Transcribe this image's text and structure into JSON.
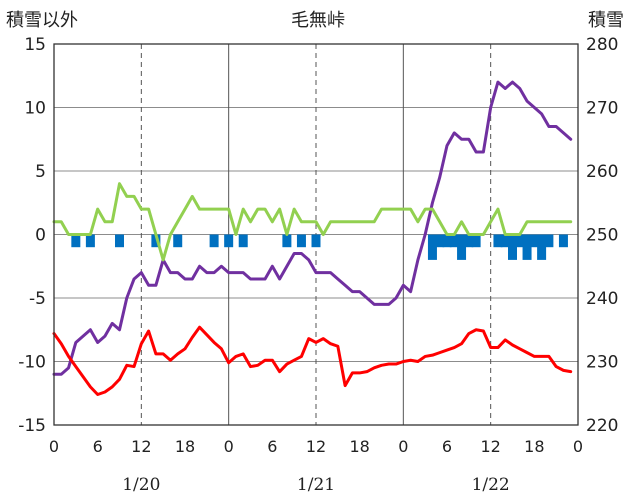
{
  "header": {
    "left_axis_title": "積雪以外",
    "title": "毛無峠",
    "right_axis_title": "積雪"
  },
  "chart_data": {
    "type": "line",
    "title": "毛無峠",
    "y_left": {
      "label": "積雪以外",
      "min": -15,
      "max": 15,
      "ticks": [
        -15,
        -10,
        -5,
        0,
        5,
        10,
        15
      ]
    },
    "y_right": {
      "label": "積雪",
      "min": 220,
      "max": 280,
      "ticks": [
        220,
        230,
        240,
        250,
        260,
        270,
        280
      ]
    },
    "x": {
      "unit": "hour",
      "min": 0,
      "max": 71,
      "tick_step": 3,
      "tick_labels": [
        "0",
        "",
        "6",
        "",
        "12",
        "",
        "18",
        "",
        "0",
        "",
        "6",
        "",
        "12",
        "",
        "18",
        "",
        "0",
        "",
        "6",
        "",
        "12",
        "",
        "18",
        "",
        "0"
      ],
      "major_positions": [
        0,
        24,
        48,
        72
      ],
      "minor_dashed_positions": [
        12,
        36,
        60
      ],
      "date_labels": [
        {
          "text": "1/20",
          "at": 12
        },
        {
          "text": "1/21",
          "at": 36
        },
        {
          "text": "1/22",
          "at": 60
        }
      ]
    },
    "grid": true,
    "series": [
      {
        "axis": "left",
        "color": "#7030a0",
        "values": [
          -11,
          -11,
          -10.5,
          -8.5,
          -8,
          -7.5,
          -8.5,
          -8,
          -7,
          -7.5,
          -5,
          -3.5,
          -3,
          -4,
          -4,
          -2,
          -3,
          -3,
          -3.5,
          -3.5,
          -2.5,
          -3,
          -3,
          -2.5,
          -3,
          -3,
          -3,
          -3.5,
          -3.5,
          -3.5,
          -2.5,
          -3.5,
          -2.5,
          -1.5,
          -1.5,
          -2,
          -3,
          -3,
          -3,
          -3.5,
          -4,
          -4.5,
          -4.5,
          -5,
          -5.5,
          -5.5,
          -5.5,
          -5,
          -4,
          -4.5,
          -2,
          0,
          2.5,
          4.5,
          7,
          8,
          7.5,
          7.5,
          6.5,
          6.5,
          10,
          12,
          11.5,
          12,
          11.5,
          10.5,
          10,
          9.5,
          8.5,
          8.5,
          8,
          7.5
        ]
      },
      {
        "axis": "left",
        "color": "#ff0000",
        "values": [
          -7.8,
          -8.6,
          -9.6,
          -10.4,
          -11.2,
          -12,
          -12.6,
          -12.4,
          -12,
          -11.4,
          -10.3,
          -10.4,
          -8.6,
          -7.6,
          -9.4,
          -9.4,
          -9.9,
          -9.4,
          -9,
          -8.1,
          -7.3,
          -7.9,
          -8.5,
          -9,
          -10.1,
          -9.6,
          -9.4,
          -10.4,
          -10.3,
          -9.9,
          -9.9,
          -10.8,
          -10.2,
          -9.9,
          -9.6,
          -8.2,
          -8.5,
          -8.2,
          -8.6,
          -8.8,
          -11.9,
          -10.9,
          -10.9,
          -10.8,
          -10.5,
          -10.3,
          -10.2,
          -10.2,
          -10,
          -9.9,
          -10,
          -9.6,
          -9.5,
          -9.3,
          -9.1,
          -8.9,
          -8.6,
          -7.8,
          -7.5,
          -7.6,
          -8.9,
          -8.9,
          -8.3,
          -8.7,
          -9,
          -9.3,
          -9.6,
          -9.6,
          -9.6,
          -10.4,
          -10.7,
          -10.8
        ]
      },
      {
        "axis": "left",
        "color": "#92d050",
        "values": [
          1,
          1,
          0,
          0,
          0,
          0,
          2,
          1,
          1,
          4,
          3,
          3,
          2,
          2,
          0,
          -2,
          0,
          1,
          2,
          3,
          2,
          2,
          2,
          2,
          2,
          0,
          2,
          1,
          2,
          2,
          1,
          2,
          0,
          2,
          1,
          1,
          1,
          0,
          1,
          1,
          1,
          1,
          1,
          1,
          1,
          2,
          2,
          2,
          2,
          2,
          1,
          2,
          2,
          1,
          0,
          0,
          1,
          0,
          0,
          0,
          1,
          2,
          0,
          0,
          0,
          1,
          1,
          1,
          1,
          1,
          1,
          1
        ]
      },
      {
        "axis": "left",
        "type": "bar",
        "color": "#0070c0",
        "values": [
          0,
          0,
          -1,
          0,
          -1,
          0,
          0,
          0,
          -1,
          0,
          0,
          0,
          0,
          -1,
          0,
          0,
          -1,
          0,
          0,
          0,
          0,
          -1,
          0,
          -1,
          0,
          -1,
          0,
          0,
          0,
          0,
          0,
          -1,
          0,
          -1,
          0,
          -1,
          0,
          0,
          0,
          0,
          0,
          0,
          0,
          0,
          0,
          0,
          0,
          0,
          0,
          0,
          0,
          -2,
          -1,
          -1,
          -1,
          -2,
          -1,
          -1,
          0,
          0,
          -1,
          -1,
          -2,
          -1,
          -2,
          -1,
          -2,
          -1,
          0,
          -1,
          0,
          0
        ]
      }
    ]
  }
}
